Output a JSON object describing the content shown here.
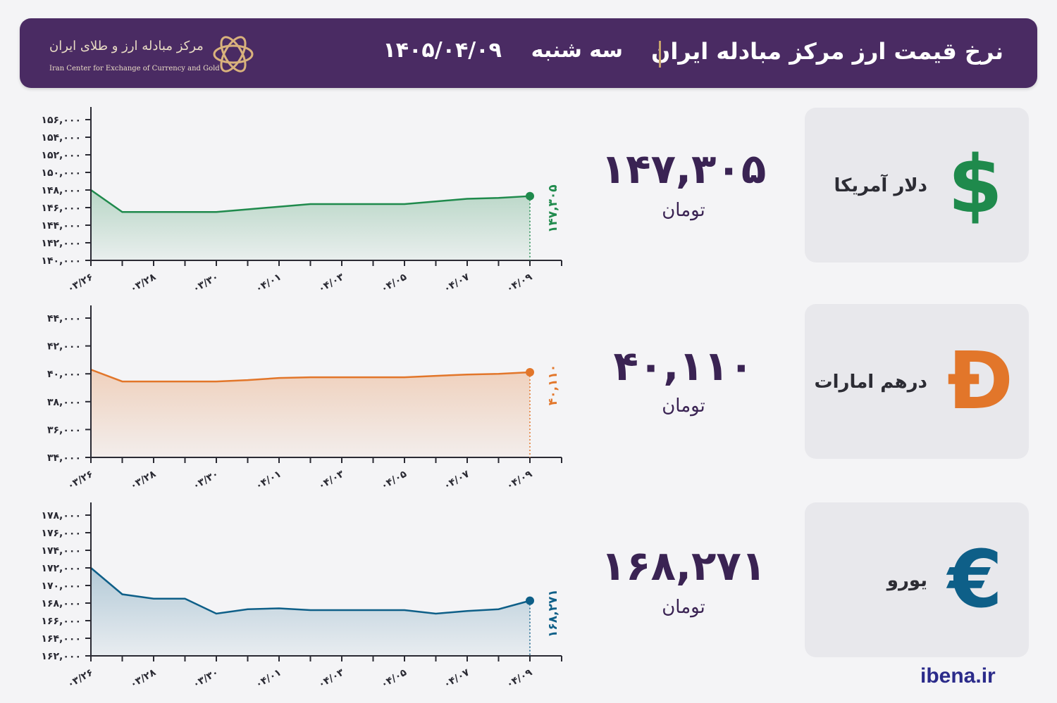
{
  "header": {
    "title": "نرخ قیمت ارز مرکز مبادله ایران",
    "weekday": "سه شنبه",
    "date": "۱۴۰۵/۰۴/۰۹",
    "logo_fa": "مرکز مبادله ارز و طلای ایران",
    "logo_en": "Iran Center for Exchange of Currency and Gold"
  },
  "brand": "ibena.ir",
  "currencies": [
    {
      "name": "دلار آمریکا",
      "icon": "dollar-sign-icon",
      "symbol": "$",
      "price": "۱۴۷,۳۰۵",
      "unit": "تومان",
      "color": "#1f8a4c"
    },
    {
      "name": "درهم امارات",
      "icon": "dirham-sign-icon",
      "symbol": "Đ",
      "price": "۴۰,۱۱۰",
      "unit": "تومان",
      "color": "#e2762a"
    },
    {
      "name": "یورو",
      "icon": "euro-sign-icon",
      "symbol": "€",
      "price": "۱۶۸,۲۷۱",
      "unit": "تومان",
      "color": "#0e5f88"
    }
  ],
  "chart_data": [
    {
      "type": "area",
      "color": "#1f8a4c",
      "x": [
        "۰۳/۲۶",
        "۰۳/۲۷",
        "۰۳/۲۸",
        "۰۳/۲۹",
        "۰۳/۳۰",
        "۰۳/۳۱",
        "۰۴/۰۱",
        "۰۴/۰۲",
        "۰۴/۰۳",
        "۰۴/۰۴",
        "۰۴/۰۵",
        "۰۴/۰۶",
        "۰۴/۰۷",
        "۰۴/۰۸",
        "۰۴/۰۹"
      ],
      "values": [
        148000,
        145500,
        145500,
        145500,
        145500,
        145800,
        146100,
        146400,
        146400,
        146400,
        146400,
        146700,
        147000,
        147100,
        147305
      ],
      "ylim": [
        140000,
        156000
      ],
      "yticks": [
        140000,
        142000,
        144000,
        146000,
        148000,
        150000,
        152000,
        154000,
        156000
      ],
      "ytick_labels": [
        "۱۴۰,۰۰۰",
        "۱۴۲,۰۰۰",
        "۱۴۴,۰۰۰",
        "۱۴۶,۰۰۰",
        "۱۴۸,۰۰۰",
        "۱۵۰,۰۰۰",
        "۱۵۲,۰۰۰",
        "۱۵۴,۰۰۰",
        "۱۵۶,۰۰۰"
      ],
      "xtick_labels": [
        "۰۳/۲۶",
        "۰۳/۲۸",
        "۰۳/۳۰",
        "۰۴/۰۱",
        "۰۴/۰۳",
        "۰۴/۰۵",
        "۰۴/۰۷",
        "۰۴/۰۹"
      ],
      "last_label": "۱۴۷,۳۰۵"
    },
    {
      "type": "area",
      "color": "#e2762a",
      "x": [
        "۰۳/۲۶",
        "۰۳/۲۷",
        "۰۳/۲۸",
        "۰۳/۲۹",
        "۰۳/۳۰",
        "۰۳/۳۱",
        "۰۴/۰۱",
        "۰۴/۰۲",
        "۰۴/۰۳",
        "۰۴/۰۴",
        "۰۴/۰۵",
        "۰۴/۰۶",
        "۰۴/۰۷",
        "۰۴/۰۸",
        "۰۴/۰۹"
      ],
      "values": [
        40300,
        39450,
        39450,
        39450,
        39450,
        39550,
        39700,
        39750,
        39750,
        39750,
        39750,
        39850,
        39950,
        40000,
        40110
      ],
      "ylim": [
        34000,
        44000
      ],
      "yticks": [
        34000,
        36000,
        38000,
        40000,
        42000,
        44000
      ],
      "ytick_labels": [
        "۳۴,۰۰۰",
        "۳۶,۰۰۰",
        "۳۸,۰۰۰",
        "۴۰,۰۰۰",
        "۴۲,۰۰۰",
        "۴۴,۰۰۰"
      ],
      "xtick_labels": [
        "۰۳/۲۶",
        "۰۳/۲۸",
        "۰۳/۳۰",
        "۰۴/۰۱",
        "۰۴/۰۳",
        "۰۴/۰۵",
        "۰۴/۰۷",
        "۰۴/۰۹"
      ],
      "last_label": "۴۰,۱۱۰"
    },
    {
      "type": "area",
      "color": "#0e5f88",
      "x": [
        "۰۳/۲۶",
        "۰۳/۲۷",
        "۰۳/۲۸",
        "۰۳/۲۹",
        "۰۳/۳۰",
        "۰۳/۳۱",
        "۰۴/۰۱",
        "۰۴/۰۲",
        "۰۴/۰۳",
        "۰۴/۰۴",
        "۰۴/۰۵",
        "۰۴/۰۶",
        "۰۴/۰۷",
        "۰۴/۰۸",
        "۰۴/۰۹"
      ],
      "values": [
        172000,
        169000,
        168500,
        168500,
        166800,
        167300,
        167400,
        167200,
        167200,
        167200,
        167200,
        166800,
        167100,
        167300,
        168271
      ],
      "ylim": [
        162000,
        178000
      ],
      "yticks": [
        162000,
        164000,
        166000,
        168000,
        170000,
        172000,
        174000,
        176000,
        178000
      ],
      "ytick_labels": [
        "۱۶۲,۰۰۰",
        "۱۶۴,۰۰۰",
        "۱۶۶,۰۰۰",
        "۱۶۸,۰۰۰",
        "۱۷۰,۰۰۰",
        "۱۷۲,۰۰۰",
        "۱۷۴,۰۰۰",
        "۱۷۶,۰۰۰",
        "۱۷۸,۰۰۰"
      ],
      "xtick_labels": [
        "۰۳/۲۶",
        "۰۳/۲۸",
        "۰۳/۳۰",
        "۰۴/۰۱",
        "۰۴/۰۳",
        "۰۴/۰۵",
        "۰۴/۰۷",
        "۰۴/۰۹"
      ],
      "last_label": "۱۶۸,۲۷۱"
    }
  ]
}
